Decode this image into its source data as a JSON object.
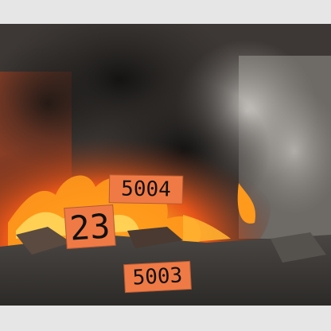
{
  "labels": {
    "tag_a": "5004",
    "tag_b": "23",
    "tag_c": "5003"
  },
  "colors": {
    "tag_background": "#f07a45",
    "frame_background": "#e6e6e6",
    "fire": "#ff8a1a",
    "smoke": "#2a2725"
  }
}
